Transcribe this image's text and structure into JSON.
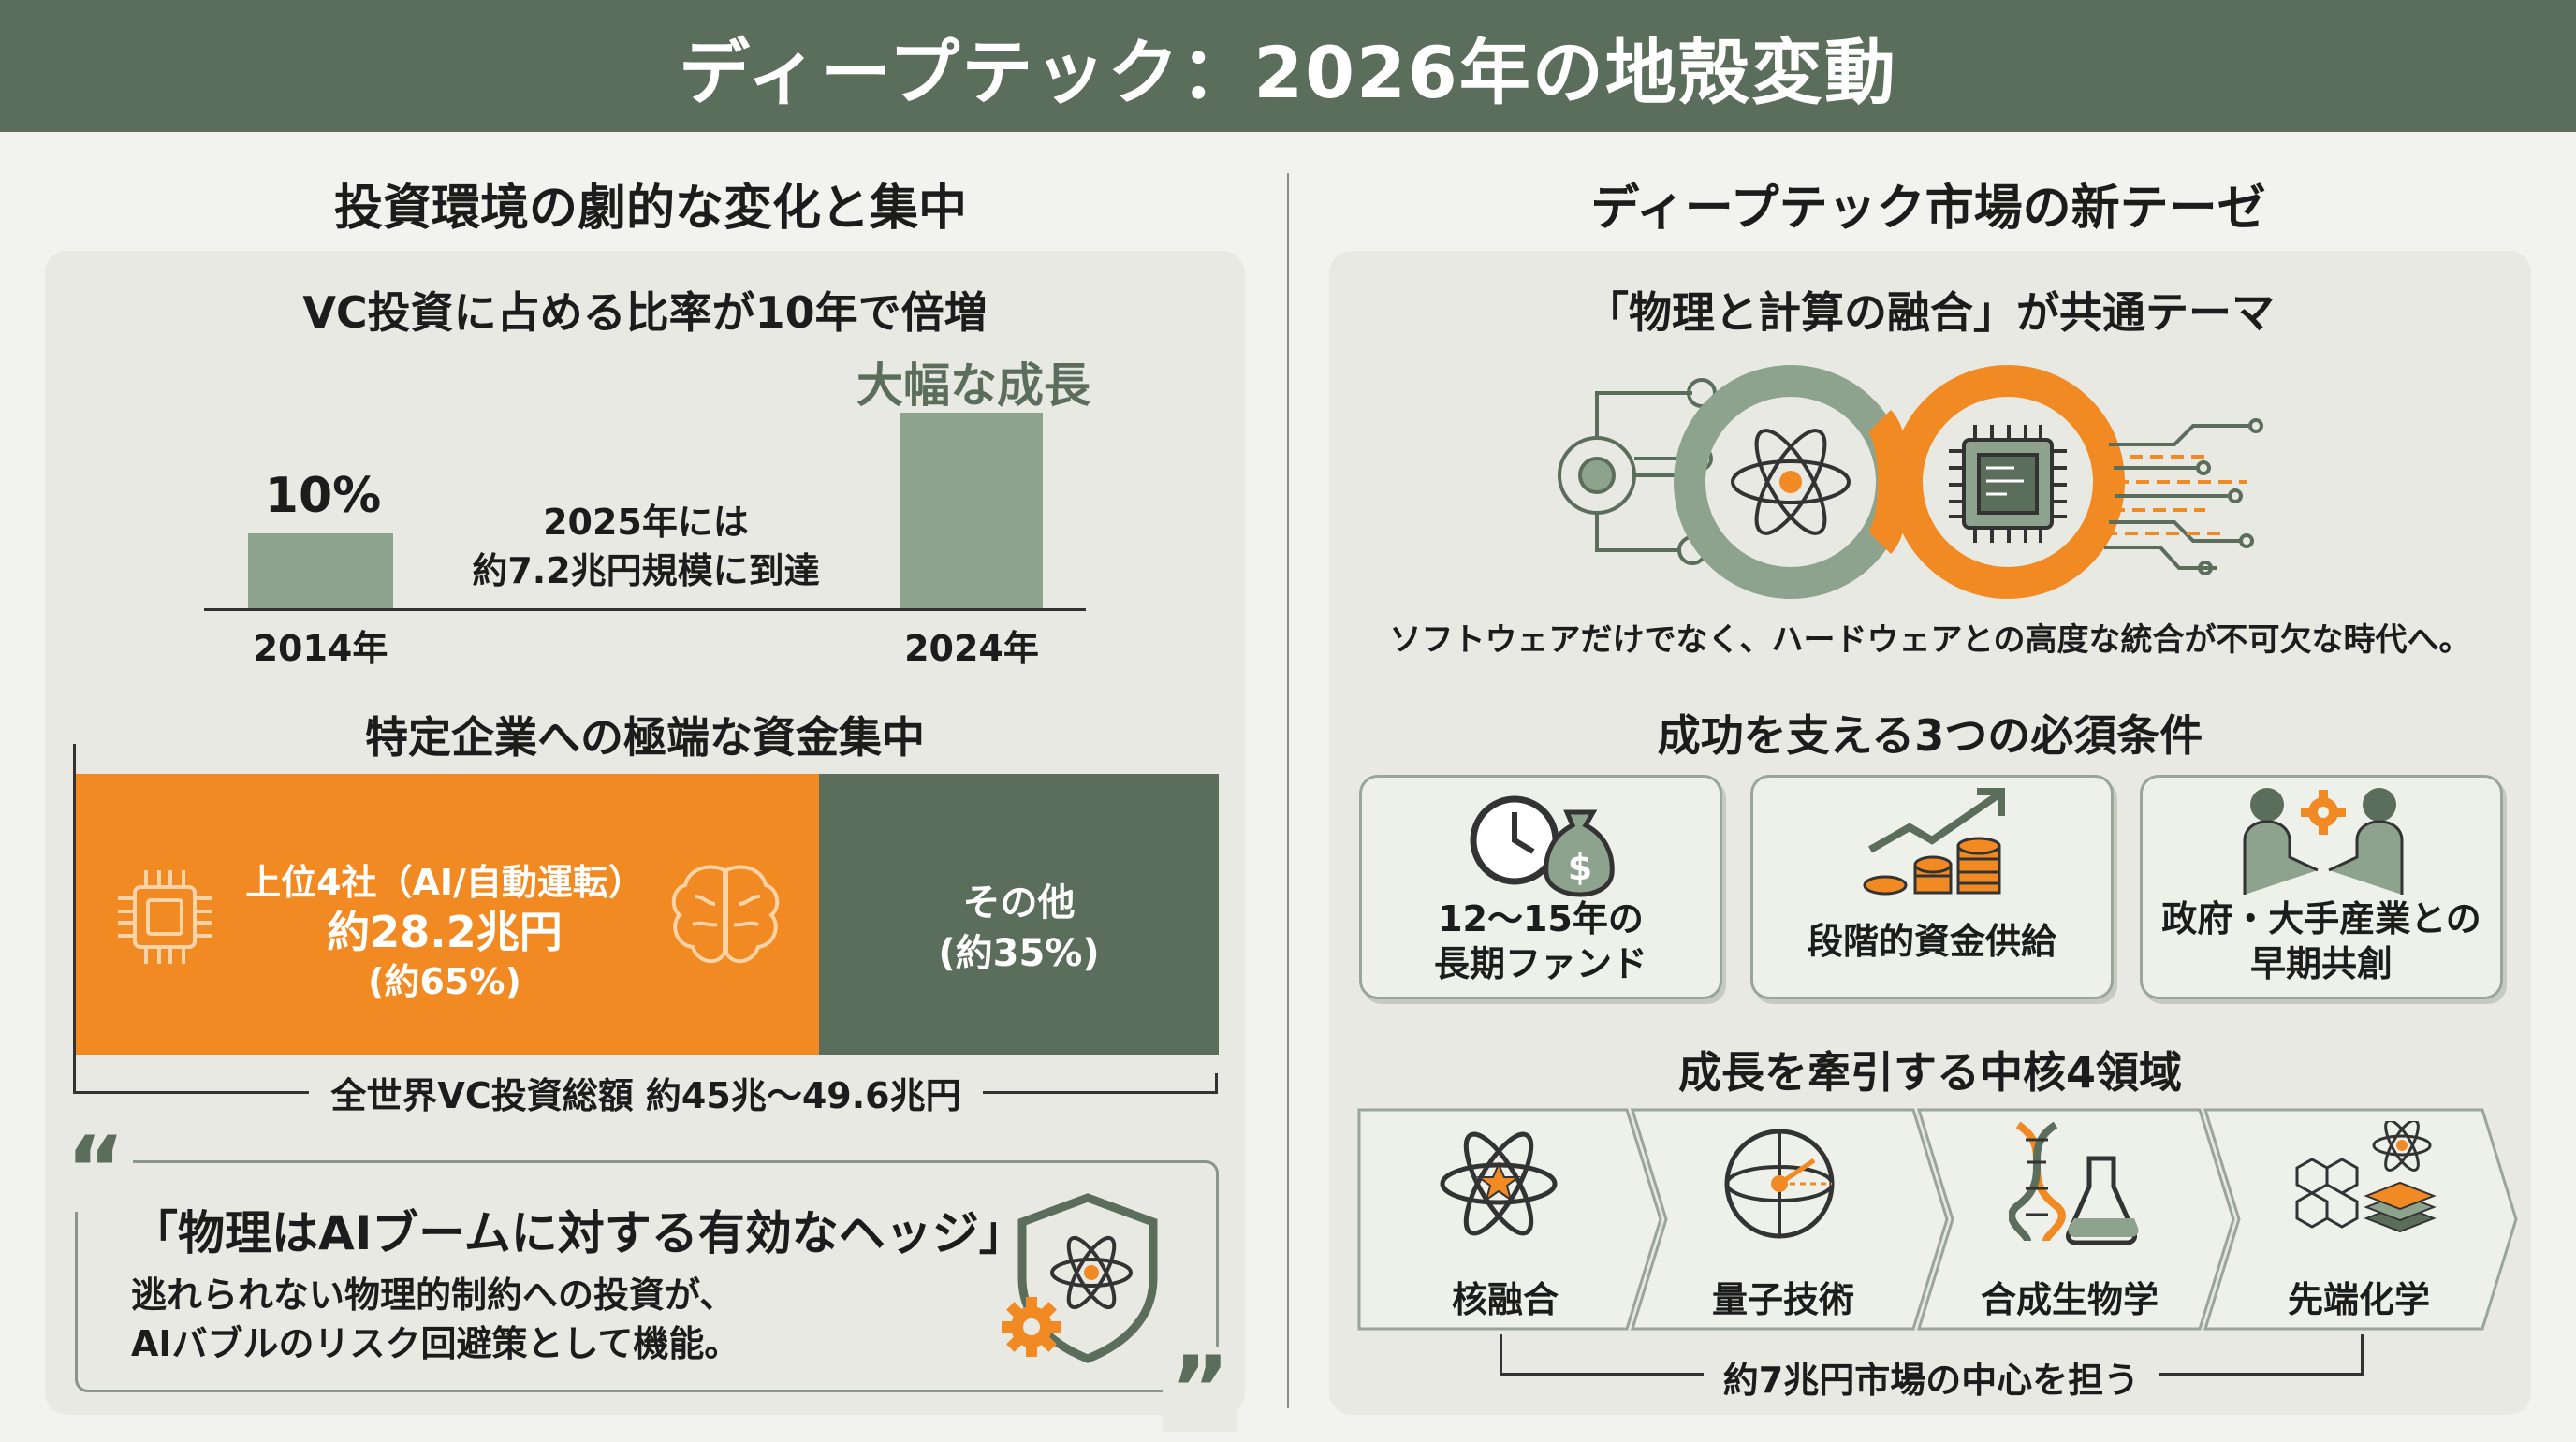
{
  "title": "ディープテック：2026年の地殻変動",
  "left": {
    "heading": "投資環境の劇的な変化と集中",
    "chart": {
      "subtitle": "VC投資に占める比率が10年で倍増",
      "bar1_value": "10%",
      "bar1_year": "2014年",
      "bar2_label": "大幅な成長",
      "bar2_year": "2024年",
      "note_line1": "2025年には",
      "note_line2": "約7.2兆円規模に到達"
    },
    "chart_data": {
      "type": "bar",
      "categories": [
        "2014年",
        "2024年"
      ],
      "values": [
        10,
        20
      ],
      "title": "VC投資に占める比率が10年で倍増"
    },
    "concentration": {
      "heading": "特定企業への極端な資金集中",
      "top_label": "上位4社（AI/自動運転）",
      "top_amount": "約28.2兆円",
      "top_share": "(約65%)",
      "other_label": "その他",
      "other_share": "(約35%)",
      "total": "全世界VC投資総額 約45兆〜49.6兆円",
      "colors": {
        "top": "#f18a23",
        "other": "#5b6d5b"
      }
    },
    "quote": {
      "headline": "「物理はAIブームに対する有効なヘッジ」",
      "line1": "逃れられない物理的制約への投資が、",
      "line2": "AIバブルのリスク回避策として機能。",
      "open_mark": "“",
      "close_mark": "”",
      "icon": "shield-atom-gear-icon"
    }
  },
  "right": {
    "heading": "ディープテック市場の新テーゼ",
    "theme": {
      "subtitle": "「物理と計算の融合」が共通テーマ",
      "caption": "ソフトウェアだけでなく、ハードウェアとの高度な統合が不可欠な時代へ。",
      "icon": "atom-chip-infinity-icon"
    },
    "conditions": {
      "heading": "成功を支える3つの必須条件",
      "items": [
        {
          "line1": "12〜15年の",
          "line2": "長期ファンド",
          "icon": "clock-moneybag-icon"
        },
        {
          "line1": "段階的資金供給",
          "line2": "",
          "icon": "growth-coins-icon"
        },
        {
          "line1": "政府・大手産業との",
          "line2": "早期共創",
          "icon": "handshake-gear-icon"
        }
      ]
    },
    "domains": {
      "heading": "成長を牽引する中核4領域",
      "items": [
        {
          "label": "核融合",
          "icon": "fusion-atom-icon"
        },
        {
          "label": "量子技術",
          "icon": "quantum-sphere-icon"
        },
        {
          "label": "合成生物学",
          "icon": "dna-flask-icon"
        },
        {
          "label": "先端化学",
          "icon": "molecule-layers-icon"
        }
      ],
      "footer": "約7兆円市場の中心を担う"
    }
  },
  "colors": {
    "green": "#5b6d5b",
    "sage": "#8ea38d",
    "orange": "#f18a23",
    "panel": "#e7e9e2"
  }
}
